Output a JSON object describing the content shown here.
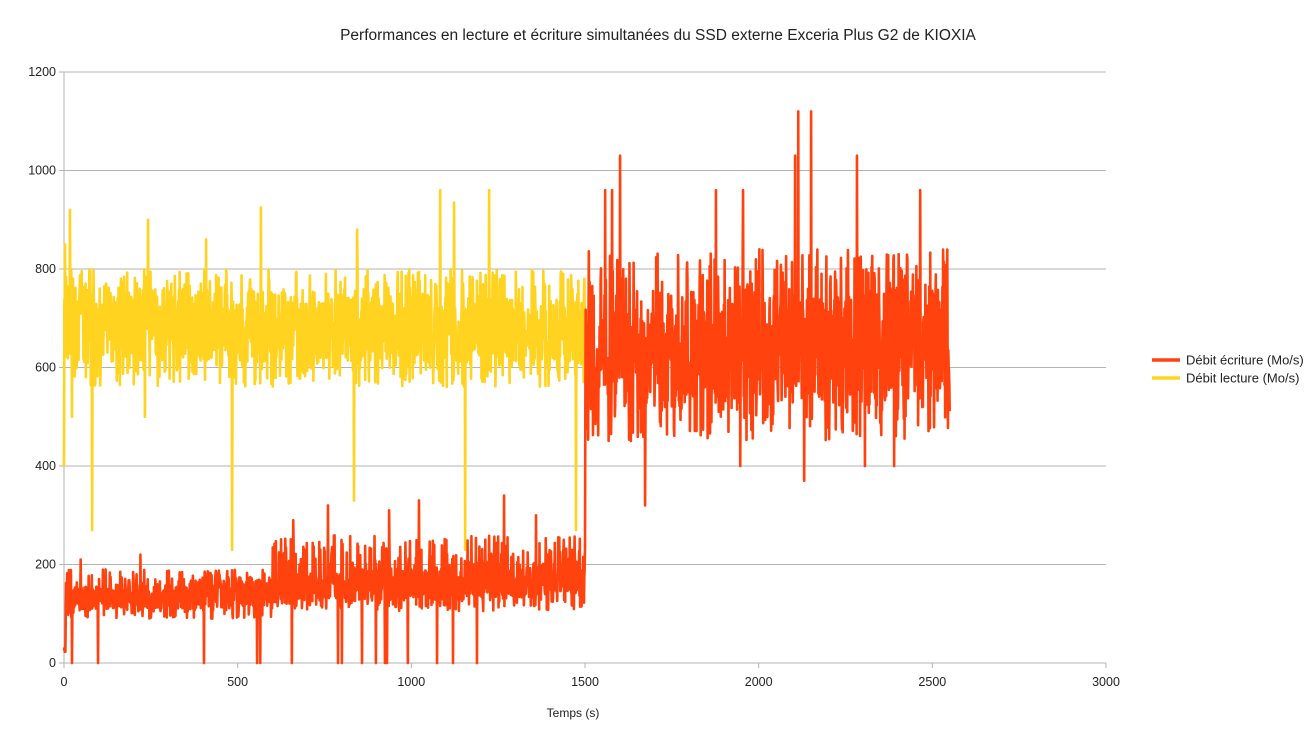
{
  "chart_data": {
    "type": "line",
    "title": "Performances en lecture et écriture simultanées du SSD externe Exceria Plus G2 de KIOXIA",
    "xlabel": "Temps (s)",
    "ylabel": "",
    "xlim": [
      0,
      3000
    ],
    "ylim": [
      0,
      1200
    ],
    "xticks": [
      0,
      500,
      1000,
      1500,
      2000,
      2500,
      3000
    ],
    "yticks": [
      0,
      200,
      400,
      600,
      800,
      1000,
      1200
    ],
    "grid": "horizontal",
    "legend_position": "right",
    "sampling_interval_s": 1,
    "series": [
      {
        "name": "Débit écriture (Mo/s)",
        "color": "#ff420e",
        "segments": [
          {
            "t_start": 0,
            "t_end": 4,
            "mean_start": 25,
            "mean_end": 25,
            "low": 20,
            "high": 30
          },
          {
            "t_start": 5,
            "t_end": 600,
            "mean_start": 130,
            "mean_end": 145,
            "low": 90,
            "high": 190
          },
          {
            "t_start": 600,
            "t_end": 1500,
            "mean_start": 150,
            "mean_end": 175,
            "low": 105,
            "high": 260
          },
          {
            "t_start": 1501,
            "t_end": 2550,
            "mean_start": 610,
            "mean_end": 660,
            "low": 450,
            "high": 840
          }
        ],
        "spikes": [
          [
            23,
            0
          ],
          [
            48,
            210
          ],
          [
            98,
            0
          ],
          [
            220,
            220
          ],
          [
            403,
            305
          ],
          [
            403,
            0
          ],
          [
            556,
            305
          ],
          [
            556,
            0
          ],
          [
            565,
            0
          ],
          [
            656,
            0
          ],
          [
            660,
            290
          ],
          [
            760,
            320
          ],
          [
            789,
            0
          ],
          [
            800,
            0
          ],
          [
            858,
            0
          ],
          [
            898,
            0
          ],
          [
            924,
            0
          ],
          [
            930,
            0
          ],
          [
            936,
            310
          ],
          [
            990,
            0
          ],
          [
            1022,
            330
          ],
          [
            1074,
            0
          ],
          [
            1120,
            0
          ],
          [
            1189,
            0
          ],
          [
            1267,
            340
          ],
          [
            1359,
            300
          ],
          [
            1558,
            960
          ],
          [
            1578,
            960
          ],
          [
            1601,
            1030
          ],
          [
            1673,
            320
          ],
          [
            1877,
            960
          ],
          [
            1947,
            400
          ],
          [
            1955,
            960
          ],
          [
            2105,
            1030
          ],
          [
            2114,
            1120
          ],
          [
            2131,
            370
          ],
          [
            2151,
            1120
          ],
          [
            2283,
            1030
          ],
          [
            2306,
            400
          ],
          [
            2390,
            400
          ],
          [
            2465,
            960
          ]
        ]
      },
      {
        "name": "Débit lecture (Mo/s)",
        "color": "#ffd320",
        "segments": [
          {
            "t_start": 0,
            "t_end": 1500,
            "mean_start": 690,
            "mean_end": 670,
            "low": 560,
            "high": 800
          }
        ],
        "spikes": [
          [
            0,
            400
          ],
          [
            3,
            850
          ],
          [
            17,
            920
          ],
          [
            23,
            500
          ],
          [
            81,
            270
          ],
          [
            233,
            500
          ],
          [
            242,
            900
          ],
          [
            409,
            860
          ],
          [
            484,
            230
          ],
          [
            567,
            925
          ],
          [
            835,
            330
          ],
          [
            844,
            880
          ],
          [
            1083,
            960
          ],
          [
            1123,
            935
          ],
          [
            1155,
            230
          ],
          [
            1224,
            960
          ],
          [
            1474,
            270
          ]
        ]
      }
    ]
  }
}
